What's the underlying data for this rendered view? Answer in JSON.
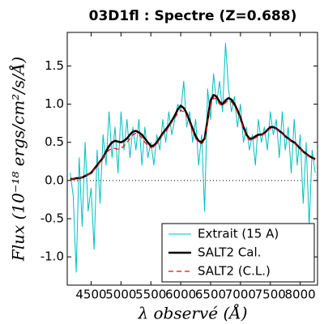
{
  "chart_data": {
    "type": "line",
    "title": "03D1fl : Spectre (Z=0.688)",
    "x_label": "λ observé (Å)",
    "y_label": "Flux (10⁻¹⁸ ergs/cm²/s/Å)",
    "x": [
      4150,
      4200,
      4250,
      4300,
      4350,
      4400,
      4450,
      4500,
      4550,
      4600,
      4650,
      4700,
      4750,
      4800,
      4850,
      4900,
      4950,
      5000,
      5050,
      5100,
      5150,
      5200,
      5250,
      5300,
      5350,
      5400,
      5450,
      5500,
      5550,
      5600,
      5650,
      5700,
      5750,
      5800,
      5850,
      5900,
      5950,
      6000,
      6050,
      6100,
      6150,
      6200,
      6250,
      6300,
      6350,
      6400,
      6450,
      6500,
      6550,
      6600,
      6650,
      6700,
      6750,
      6800,
      6850,
      6900,
      6950,
      7000,
      7050,
      7100,
      7150,
      7200,
      7250,
      7300,
      7350,
      7400,
      7450,
      7500,
      7550,
      7600,
      7650,
      7700,
      7750,
      7800,
      7850,
      7900,
      7950,
      8000,
      8050,
      8100,
      8150,
      8200,
      8250
    ],
    "series": [
      {
        "name": "Extrait (15 A)",
        "color": "#00bfbf",
        "style": "solid",
        "width": 1,
        "values": [
          0.1,
          -0.2,
          -1.2,
          0.3,
          -0.6,
          0.5,
          -0.4,
          -0.1,
          -0.9,
          0.4,
          -0.3,
          0.6,
          0.2,
          0.9,
          0.3,
          0.7,
          0.1,
          0.9,
          0.4,
          0.8,
          0.3,
          0.7,
          0.4,
          0.8,
          0.2,
          0.7,
          0.3,
          0.5,
          0.2,
          0.6,
          0.4,
          0.8,
          0.5,
          0.9,
          0.6,
          0.8,
          1.0,
          0.9,
          1.3,
          0.7,
          0.9,
          0.5,
          0.8,
          0.2,
          0.6,
          -0.4,
          1.2,
          0.8,
          1.4,
          1.0,
          1.3,
          0.9,
          1.8,
          1.2,
          0.9,
          1.1,
          0.7,
          1.0,
          0.5,
          0.7,
          0.4,
          0.6,
          0.2,
          0.8,
          0.5,
          0.7,
          0.4,
          0.9,
          0.6,
          0.8,
          0.3,
          0.9,
          0.4,
          0.7,
          0.1,
          0.8,
          0.2,
          0.6,
          -0.3,
          0.5,
          -0.6,
          0.4,
          0.1
        ]
      },
      {
        "name": "SALT2 Cal.",
        "color": "#000000",
        "style": "solid",
        "width": 2.5,
        "values": [
          0.02,
          0.02,
          0.03,
          0.03,
          0.04,
          0.06,
          0.08,
          0.1,
          0.15,
          0.2,
          0.25,
          0.3,
          0.38,
          0.45,
          0.5,
          0.52,
          0.51,
          0.5,
          0.52,
          0.55,
          0.6,
          0.64,
          0.65,
          0.63,
          0.6,
          0.55,
          0.5,
          0.45,
          0.46,
          0.5,
          0.56,
          0.62,
          0.67,
          0.72,
          0.78,
          0.85,
          0.93,
          0.98,
          0.95,
          0.88,
          0.78,
          0.68,
          0.58,
          0.52,
          0.5,
          0.55,
          0.8,
          1.05,
          1.12,
          1.1,
          1.03,
          1.0,
          1.05,
          1.08,
          1.06,
          1.0,
          0.92,
          0.82,
          0.7,
          0.6,
          0.55,
          0.55,
          0.58,
          0.6,
          0.6,
          0.62,
          0.66,
          0.7,
          0.7,
          0.68,
          0.65,
          0.62,
          0.58,
          0.55,
          0.52,
          0.5,
          0.46,
          0.42,
          0.38,
          0.35,
          0.32,
          0.3,
          0.28
        ]
      },
      {
        "name": "SALT2 (C.L.)",
        "color": "#ff0000",
        "style": "dashed",
        "width": 1.2,
        "values": [
          0.02,
          0.02,
          0.03,
          0.03,
          0.04,
          0.06,
          0.08,
          0.1,
          0.14,
          0.18,
          0.24,
          0.3,
          0.36,
          0.4,
          0.42,
          0.42,
          0.41,
          0.42,
          0.45,
          0.5,
          0.55,
          0.6,
          0.62,
          0.6,
          0.56,
          0.5,
          0.46,
          0.43,
          0.44,
          0.48,
          0.54,
          0.6,
          0.64,
          0.7,
          0.76,
          0.82,
          0.88,
          0.92,
          0.9,
          0.85,
          0.75,
          0.65,
          0.55,
          0.5,
          0.48,
          0.52,
          0.75,
          1.0,
          1.08,
          1.07,
          1.0,
          0.98,
          1.02,
          1.05,
          1.03,
          0.97,
          0.9,
          0.8,
          0.68,
          0.58,
          0.53,
          0.53,
          0.56,
          0.58,
          0.59,
          0.61,
          0.65,
          0.68,
          0.69,
          0.67,
          0.64,
          0.61,
          0.57,
          0.54,
          0.51,
          0.49,
          0.45,
          0.41,
          0.37,
          0.34,
          0.31,
          0.29,
          0.27
        ]
      }
    ],
    "zero_line": 0,
    "xlim": [
      4100,
      8290
    ],
    "ylim": [
      -1.37,
      1.94
    ],
    "xticks": [
      4500,
      5000,
      5500,
      6000,
      6500,
      7000,
      7500,
      8000
    ],
    "yticks": [
      1.5,
      {
        "value": 1.0,
        "label": "1.0"
      },
      0.5,
      {
        "value": 0.0,
        "label": "0.0"
      },
      -0.5,
      {
        "value": -1.0,
        "label": "-1.0"
      }
    ],
    "legend": "lower right"
  }
}
